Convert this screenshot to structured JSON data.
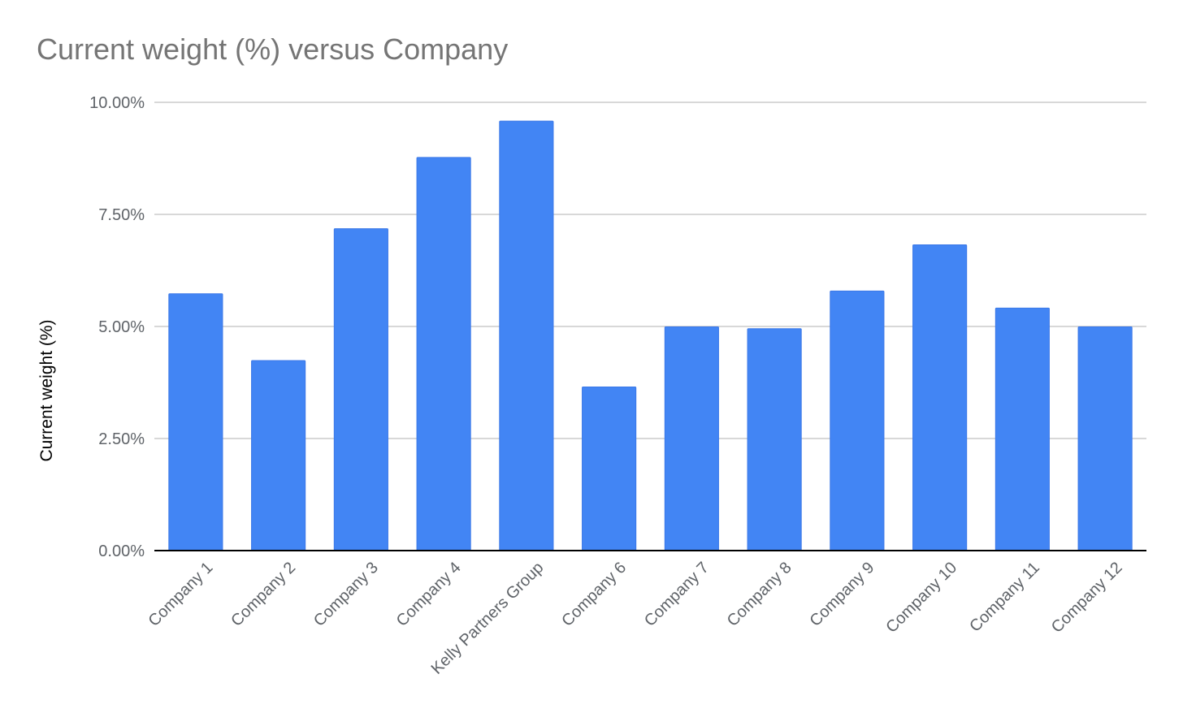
{
  "chart_data": {
    "type": "bar",
    "title": "Current weight (%) versus Company",
    "xlabel": "",
    "ylabel": "Current weight (%)",
    "ylim": [
      0,
      10
    ],
    "yticks": [
      {
        "value": 0,
        "label": "0.00%"
      },
      {
        "value": 2.5,
        "label": "2.50%"
      },
      {
        "value": 5,
        "label": "5.00%"
      },
      {
        "value": 7.5,
        "label": "7.50%"
      },
      {
        "value": 10,
        "label": "10.00%"
      }
    ],
    "categories": [
      "Company 1",
      "Company 2",
      "Company 3",
      "Company 4",
      "Kelly Partners Group",
      "Company 6",
      "Company 7",
      "Company 8",
      "Company 9",
      "Company 10",
      "Company 11",
      "Company 12"
    ],
    "series": [
      {
        "values": [
          5.73,
          4.24,
          7.18,
          8.77,
          9.58,
          3.65,
          4.99,
          4.95,
          5.79,
          6.82,
          5.41,
          4.99
        ]
      }
    ],
    "grid": true,
    "legend": "none",
    "colors": {
      "bar": "#4285f4",
      "bar_edge": "#3b78e7",
      "grid": "#cccccc",
      "baseline": "#000000",
      "tick_text": "#5f6368",
      "title": "#757575",
      "axis_title": "#000000"
    }
  }
}
